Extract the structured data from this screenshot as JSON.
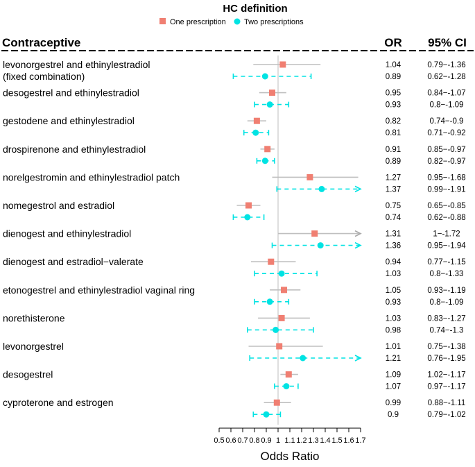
{
  "chart_data": {
    "type": "forest",
    "legend": {
      "title": "HC definition",
      "items": [
        {
          "name": "One prescription",
          "color": "#f07f72",
          "shape": "square"
        },
        {
          "name": "Two prescriptions",
          "color": "#00e3e3",
          "shape": "circle"
        }
      ]
    },
    "header": {
      "label_col": "Contraceptive",
      "or_col": "OR",
      "ci_col": "95% CI"
    },
    "xlabel": "Odds Ratio",
    "x_ticks": [
      "0.5",
      "0.6",
      "0.7",
      "0.8",
      "0.9",
      "1",
      "1.1",
      "1.2",
      "1.3",
      "1.4",
      "1.5",
      "1.6",
      "1.7"
    ],
    "x_tick_values": [
      0.5,
      0.6,
      0.7,
      0.8,
      0.9,
      1,
      1.1,
      1.2,
      1.3,
      1.4,
      1.5,
      1.6,
      1.7
    ],
    "xlim": [
      0.5,
      1.7
    ],
    "reference_line": 1,
    "rows": [
      {
        "label": "levonorgestrel and ethinylestradiol\n(fixed combination)",
        "one": {
          "or": 1.04,
          "lo": 0.79,
          "hi": 1.36,
          "or_text": "1.04",
          "ci_text": "0.79−-1.36"
        },
        "two": {
          "or": 0.89,
          "lo": 0.62,
          "hi": 1.28,
          "or_text": "0.89",
          "ci_text": "0.62−-1.28"
        }
      },
      {
        "label": "desogestrel and ethinylestradiol",
        "one": {
          "or": 0.95,
          "lo": 0.84,
          "hi": 1.07,
          "or_text": "0.95",
          "ci_text": "0.84−-1.07"
        },
        "two": {
          "or": 0.93,
          "lo": 0.8,
          "hi": 1.09,
          "or_text": "0.93",
          "ci_text": "0.8−-1.09"
        }
      },
      {
        "label": "gestodene and ethinylestradiol",
        "one": {
          "or": 0.82,
          "lo": 0.74,
          "hi": 0.9,
          "or_text": "0.82",
          "ci_text": "0.74−-0.9"
        },
        "two": {
          "or": 0.81,
          "lo": 0.71,
          "hi": 0.92,
          "or_text": "0.81",
          "ci_text": "0.71−-0.92"
        }
      },
      {
        "label": "drospirenone and ethinylestradiol",
        "one": {
          "or": 0.91,
          "lo": 0.85,
          "hi": 0.97,
          "or_text": "0.91",
          "ci_text": "0.85−-0.97"
        },
        "two": {
          "or": 0.89,
          "lo": 0.82,
          "hi": 0.97,
          "or_text": "0.89",
          "ci_text": "0.82−-0.97"
        }
      },
      {
        "label": "norelgestromin and ethinylestradiol patch",
        "one": {
          "or": 1.27,
          "lo": 0.95,
          "hi": 1.68,
          "or_text": "1.27",
          "ci_text": "0.95−-1.68"
        },
        "two": {
          "or": 1.37,
          "lo": 0.99,
          "hi": 1.91,
          "or_text": "1.37",
          "ci_text": "0.99−-1.91"
        }
      },
      {
        "label": "nomegestrol and estradiol",
        "one": {
          "or": 0.75,
          "lo": 0.65,
          "hi": 0.85,
          "or_text": "0.75",
          "ci_text": "0.65−-0.85"
        },
        "two": {
          "or": 0.74,
          "lo": 0.62,
          "hi": 0.88,
          "or_text": "0.74",
          "ci_text": "0.62−-0.88"
        }
      },
      {
        "label": "dienogest and ethinylestradiol",
        "one": {
          "or": 1.31,
          "lo": 1,
          "hi": 1.72,
          "or_text": "1.31",
          "ci_text": "1−-1.72"
        },
        "two": {
          "or": 1.36,
          "lo": 0.95,
          "hi": 1.94,
          "or_text": "1.36",
          "ci_text": "0.95−-1.94"
        }
      },
      {
        "label": "dienogest and estradiol−valerate",
        "one": {
          "or": 0.94,
          "lo": 0.77,
          "hi": 1.15,
          "or_text": "0.94",
          "ci_text": "0.77−-1.15"
        },
        "two": {
          "or": 1.03,
          "lo": 0.8,
          "hi": 1.33,
          "or_text": "1.03",
          "ci_text": "0.8−-1.33"
        }
      },
      {
        "label": "etonogestrel and ethinylestradiol vaginal ring",
        "one": {
          "or": 1.05,
          "lo": 0.93,
          "hi": 1.19,
          "or_text": "1.05",
          "ci_text": "0.93−-1.19"
        },
        "two": {
          "or": 0.93,
          "lo": 0.8,
          "hi": 1.09,
          "or_text": "0.93",
          "ci_text": "0.8−-1.09"
        }
      },
      {
        "label": "norethisterone",
        "one": {
          "or": 1.03,
          "lo": 0.83,
          "hi": 1.27,
          "or_text": "1.03",
          "ci_text": "0.83−-1.27"
        },
        "two": {
          "or": 0.98,
          "lo": 0.74,
          "hi": 1.3,
          "or_text": "0.98",
          "ci_text": "0.74−-1.3"
        }
      },
      {
        "label": "levonorgestrel",
        "one": {
          "or": 1.01,
          "lo": 0.75,
          "hi": 1.38,
          "or_text": "1.01",
          "ci_text": "0.75−-1.38"
        },
        "two": {
          "or": 1.21,
          "lo": 0.76,
          "hi": 1.95,
          "or_text": "1.21",
          "ci_text": "0.76−-1.95"
        }
      },
      {
        "label": "desogestrel",
        "one": {
          "or": 1.09,
          "lo": 1.02,
          "hi": 1.17,
          "or_text": "1.09",
          "ci_text": "1.02−-1.17"
        },
        "two": {
          "or": 1.07,
          "lo": 0.97,
          "hi": 1.17,
          "or_text": "1.07",
          "ci_text": "0.97−-1.17"
        }
      },
      {
        "label": "cyproterone and estrogen",
        "one": {
          "or": 0.99,
          "lo": 0.88,
          "hi": 1.11,
          "or_text": "0.99",
          "ci_text": "0.88−-1.11"
        },
        "two": {
          "or": 0.9,
          "lo": 0.79,
          "hi": 1.02,
          "or_text": "0.9",
          "ci_text": "0.79−-1.02"
        }
      }
    ]
  }
}
